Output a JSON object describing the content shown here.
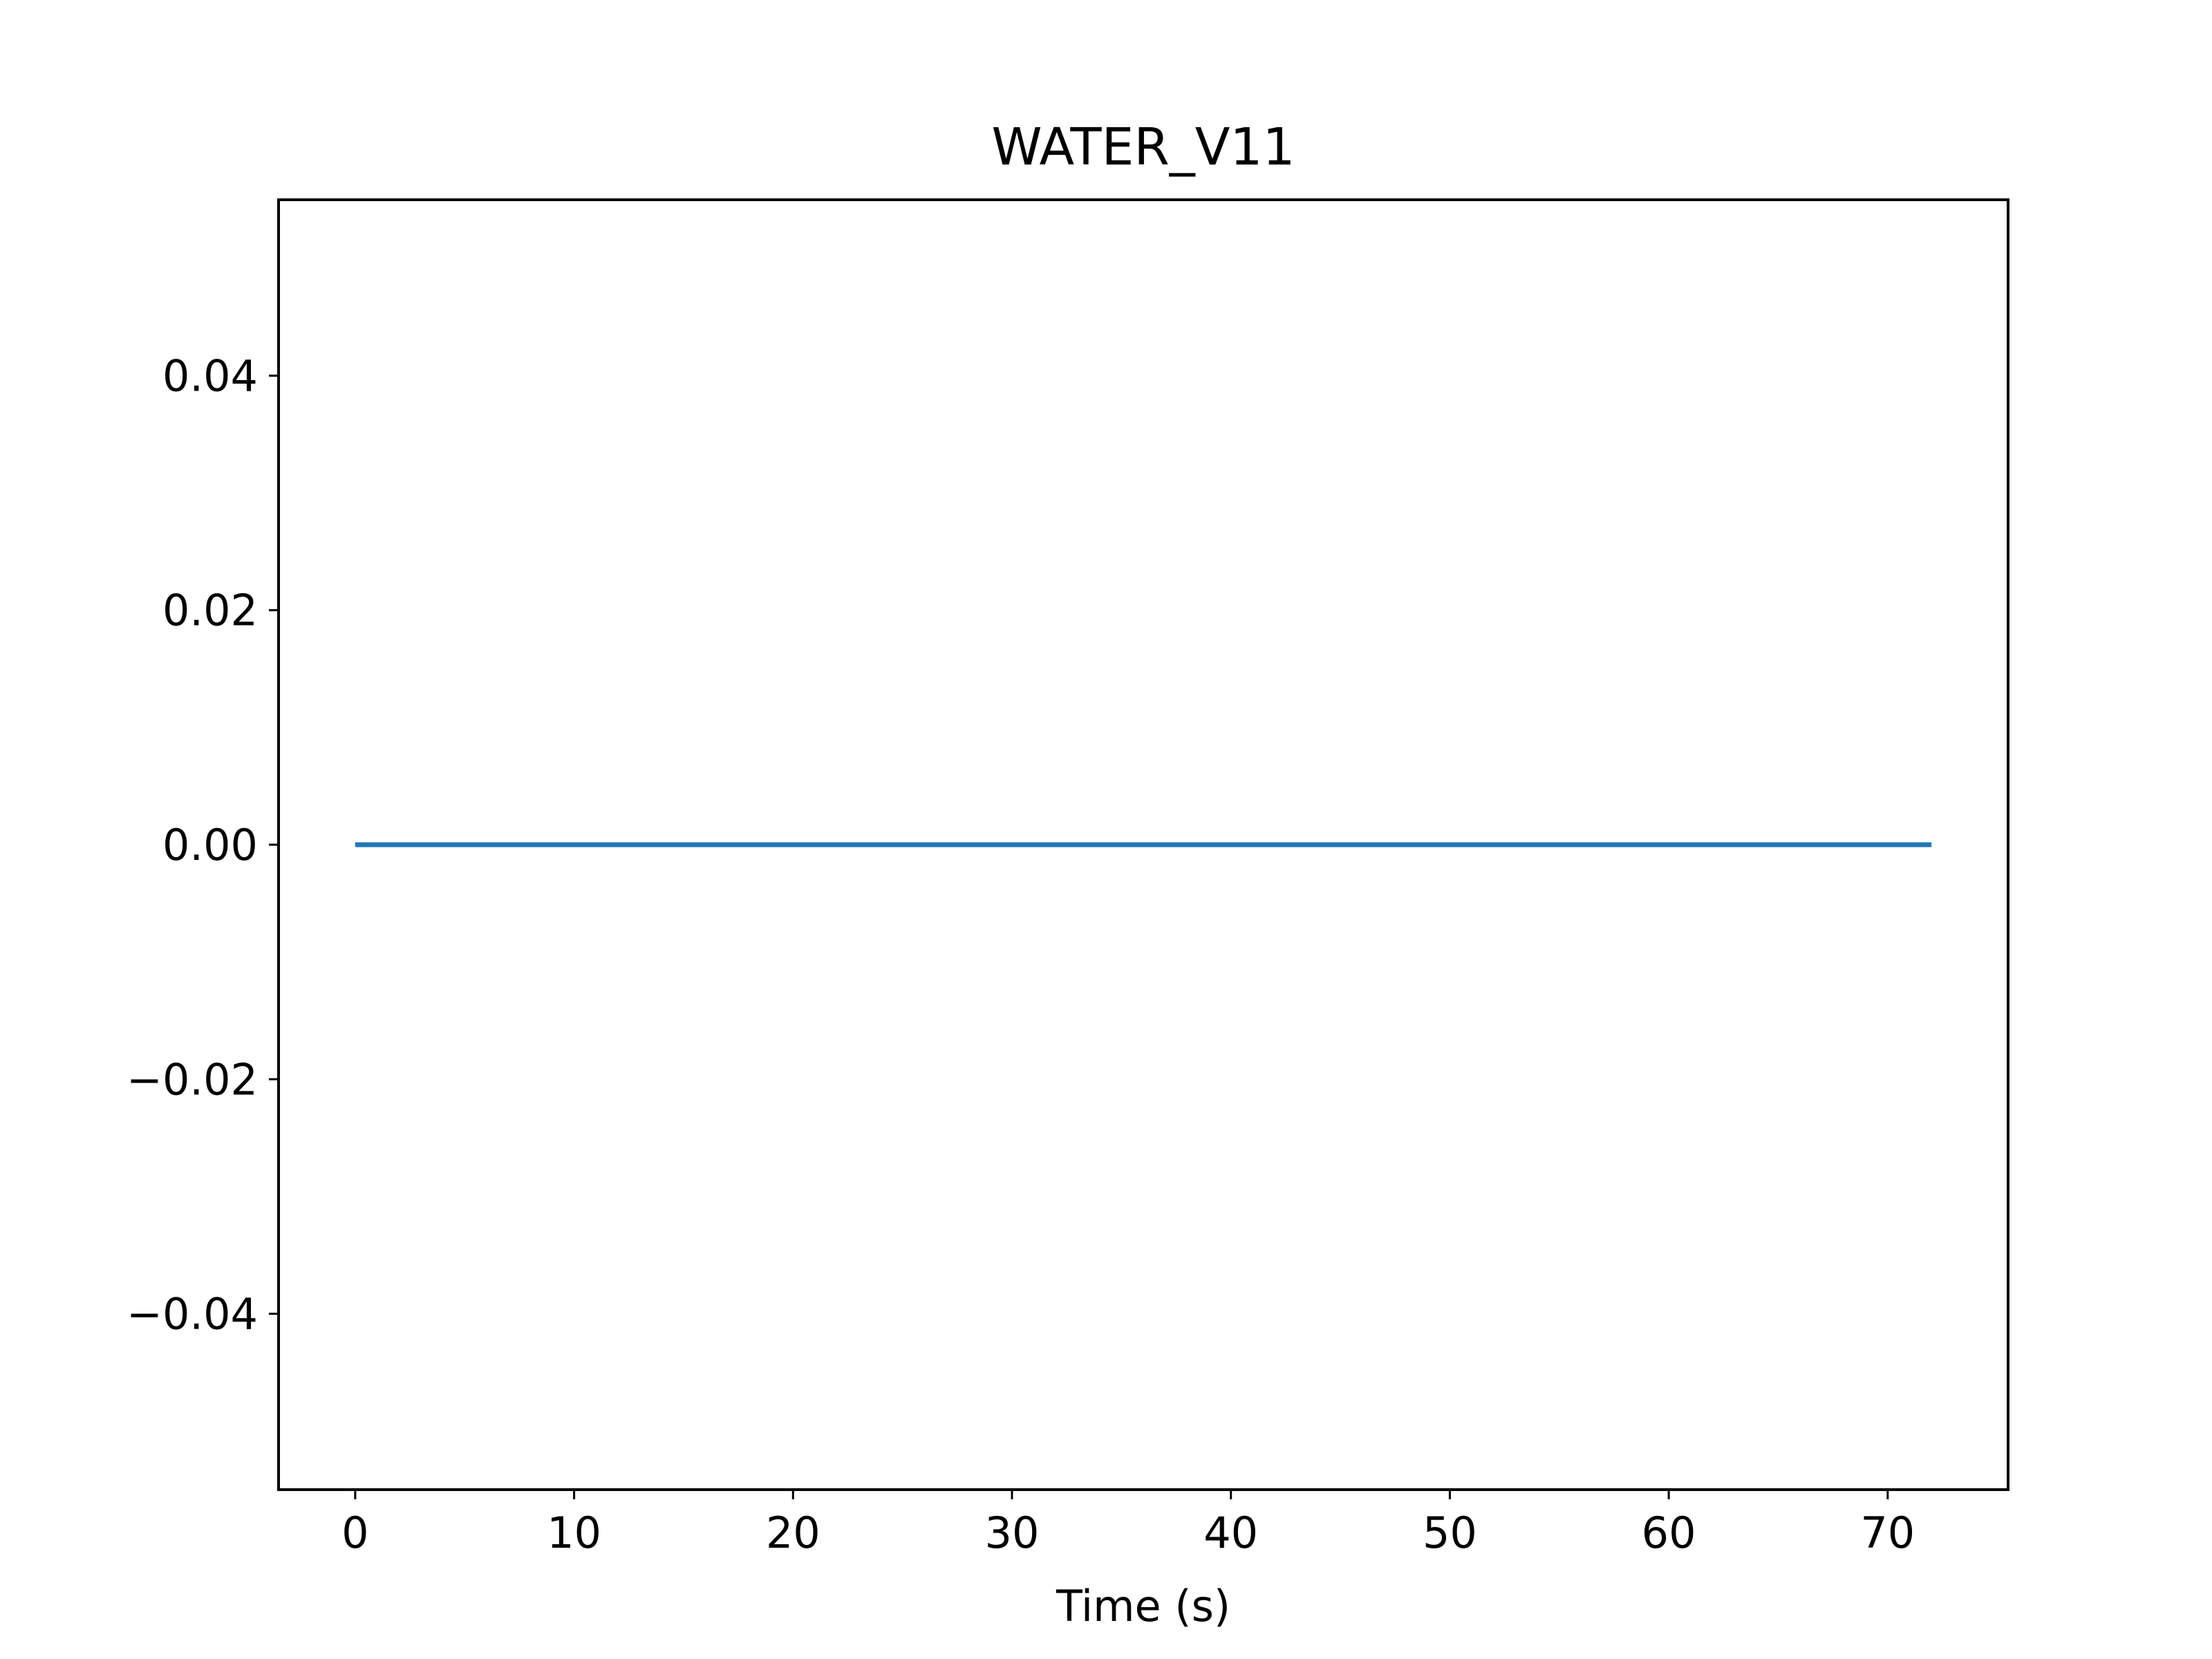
{
  "chart_data": {
    "type": "line",
    "title": "WATER_V11",
    "xlabel": "Time (s)",
    "ylabel": "",
    "xlim": [
      -3.5,
      75.5
    ],
    "ylim": [
      -0.055,
      0.055
    ],
    "x_ticks": [
      0,
      10,
      20,
      30,
      40,
      50,
      60,
      70
    ],
    "x_tick_labels": [
      "0",
      "10",
      "20",
      "30",
      "40",
      "50",
      "60",
      "70"
    ],
    "y_ticks": [
      0.04,
      0.02,
      0.0,
      -0.02,
      -0.04
    ],
    "y_tick_labels": [
      "0.04",
      "0.02",
      "0.00",
      "−0.02",
      "−0.04"
    ],
    "grid": false,
    "legend": "none",
    "series": [
      {
        "color": "#1f77b4",
        "x": [
          0,
          72
        ],
        "y": [
          0.0,
          0.0
        ]
      }
    ]
  }
}
